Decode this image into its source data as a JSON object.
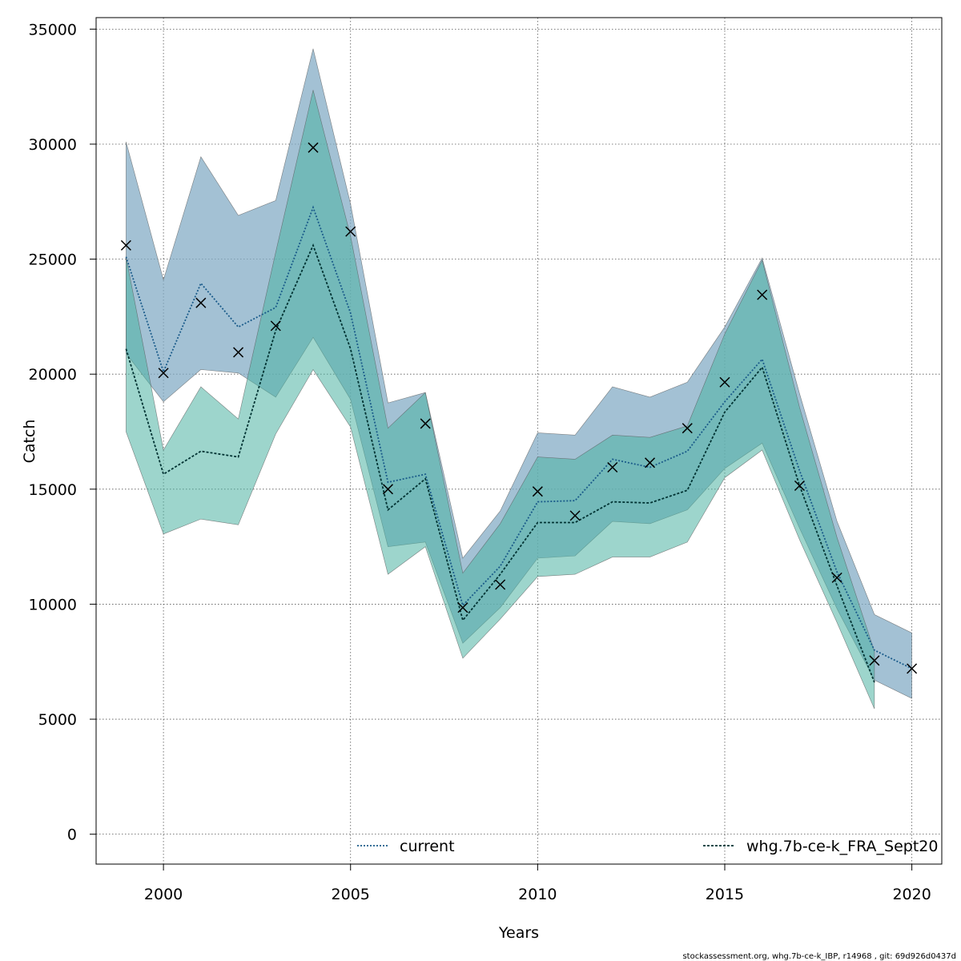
{
  "chart_data": {
    "type": "line",
    "xlabel": "Years",
    "ylabel": "Catch",
    "xlim": [
      1998.2,
      2020.8
    ],
    "ylim": [
      -1300,
      35500
    ],
    "x_ticks": [
      2000,
      2005,
      2010,
      2015,
      2020
    ],
    "y_ticks": [
      0,
      5000,
      10000,
      15000,
      20000,
      25000,
      30000,
      35000
    ],
    "grid": true,
    "legend_placement": "bottom",
    "series": [
      {
        "name": "current",
        "color": "#1a5b8a",
        "band_color": "#7fa9c4",
        "line_style": "dotted",
        "x": [
          1999,
          2000,
          2001,
          2002,
          2003,
          2004,
          2005,
          2006,
          2007,
          2008,
          2009,
          2010,
          2011,
          2012,
          2013,
          2014,
          2015,
          2016,
          2017,
          2018,
          2019,
          2020
        ],
        "values": [
          25100,
          20100,
          23950,
          22050,
          22900,
          27250,
          22650,
          15300,
          15650,
          9950,
          11650,
          14450,
          14500,
          16300,
          15950,
          16650,
          18800,
          20650,
          15800,
          11400,
          8000,
          7200
        ],
        "lower": [
          20900,
          18800,
          20200,
          20050,
          19000,
          21600,
          18900,
          12500,
          12700,
          8300,
          9850,
          12000,
          12100,
          13600,
          13500,
          14100,
          15900,
          17000,
          13300,
          9800,
          6700,
          5900
        ],
        "upper": [
          30100,
          24100,
          29450,
          26900,
          27550,
          34150,
          27400,
          18750,
          19200,
          12000,
          14050,
          17450,
          17350,
          19450,
          19000,
          19650,
          22050,
          25050,
          19150,
          13600,
          9550,
          8750
        ]
      },
      {
        "name": "whg.7b-ce-k_FRA_Sept20",
        "color": "#003333",
        "band_color": "#4db3a3",
        "line_style": "dashed",
        "x": [
          1999,
          2000,
          2001,
          2002,
          2003,
          2004,
          2005,
          2006,
          2007,
          2008,
          2009,
          2010,
          2011,
          2012,
          2013,
          2014,
          2015,
          2016,
          2017,
          2018,
          2019
        ],
        "values": [
          21100,
          15650,
          16650,
          16400,
          21900,
          25600,
          21100,
          14100,
          15450,
          9300,
          11300,
          13550,
          13550,
          14450,
          14400,
          14950,
          18350,
          20300,
          15150,
          10800,
          6600
        ],
        "lower": [
          17500,
          13050,
          13700,
          13450,
          17400,
          20200,
          17700,
          11300,
          12500,
          7650,
          9350,
          11200,
          11300,
          12050,
          12050,
          12700,
          15500,
          16700,
          12800,
          9200,
          5450
        ],
        "upper": [
          25100,
          16700,
          19450,
          18050,
          25300,
          32350,
          26000,
          17650,
          19200,
          11350,
          13500,
          16400,
          16300,
          17350,
          17250,
          17750,
          21750,
          24950,
          18550,
          12900,
          7950
        ]
      }
    ],
    "observed": {
      "marker": "x",
      "x": [
        1999,
        2000,
        2001,
        2002,
        2003,
        2004,
        2005,
        2006,
        2007,
        2008,
        2009,
        2010,
        2011,
        2012,
        2013,
        2014,
        2015,
        2016,
        2017,
        2018,
        2019,
        2020
      ],
      "values": [
        25600,
        20050,
        23100,
        20950,
        22100,
        29850,
        26200,
        15000,
        17850,
        9850,
        10850,
        14900,
        13850,
        15950,
        16150,
        17650,
        19650,
        23450,
        15150,
        11150,
        7550,
        7200
      ]
    },
    "footer": "stockassessment.org, whg.7b-ce-k_IBP, r14968 , git: 69d926d0437d"
  }
}
